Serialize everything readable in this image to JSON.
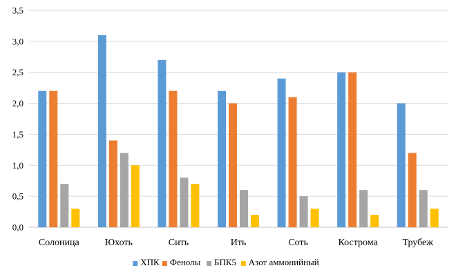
{
  "chart_data": {
    "type": "bar",
    "title": "",
    "xlabel": "",
    "ylabel": "",
    "ylim": [
      0,
      3.5
    ],
    "ytick_step": 0.5,
    "ytick_labels": [
      "0,0",
      "0,5",
      "1,0",
      "1,5",
      "2,0",
      "2,5",
      "3,0",
      "3,5"
    ],
    "grid": true,
    "legend_position": "bottom",
    "categories": [
      "Солоница",
      "Юхоть",
      "Сить",
      "Ить",
      "Соть",
      "Кострома",
      "Трубеж"
    ],
    "series": [
      {
        "name": "ХПК",
        "color": "#5B9BD5",
        "values": [
          2.2,
          3.1,
          2.7,
          2.2,
          2.4,
          2.5,
          2.0
        ]
      },
      {
        "name": "Фенолы",
        "color": "#ED7D31",
        "values": [
          2.2,
          1.4,
          2.2,
          2.0,
          2.1,
          2.5,
          1.2
        ]
      },
      {
        "name": "БПК5",
        "color": "#A5A5A5",
        "values": [
          0.7,
          1.2,
          0.8,
          0.6,
          0.5,
          0.6,
          0.6
        ]
      },
      {
        "name": "Азот аммонийный",
        "color": "#FFC000",
        "values": [
          0.3,
          1.0,
          0.7,
          0.2,
          0.3,
          0.2,
          0.3
        ]
      }
    ]
  }
}
